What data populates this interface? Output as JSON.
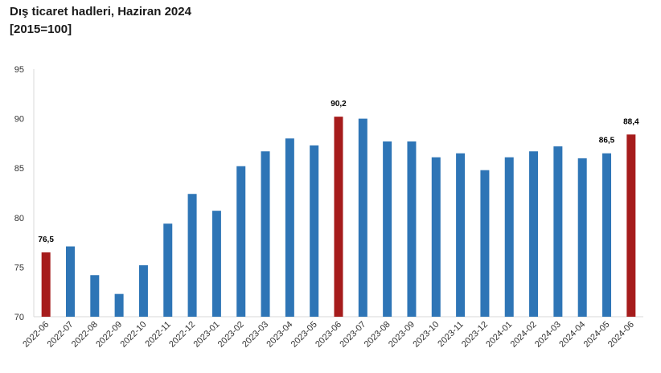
{
  "chart_data": {
    "type": "bar",
    "title": "Dış ticaret hadleri, Haziran 2024",
    "subtitle": "[2015=100]",
    "categories": [
      "2022-06",
      "2022-07",
      "2022-08",
      "2022-09",
      "2022-10",
      "2022-11",
      "2022-12",
      "2023-01",
      "2023-02",
      "2023-03",
      "2023-04",
      "2023-05",
      "2023-06",
      "2023-07",
      "2023-08",
      "2023-09",
      "2023-10",
      "2023-11",
      "2023-12",
      "2024-01",
      "2024-02",
      "2024-03",
      "2024-04",
      "2024-05",
      "2024-06"
    ],
    "values": [
      76.5,
      77.1,
      74.2,
      72.3,
      75.2,
      79.4,
      82.4,
      80.7,
      85.2,
      86.7,
      88.0,
      87.3,
      90.2,
      90.0,
      87.7,
      87.7,
      86.1,
      86.5,
      84.8,
      86.1,
      86.7,
      87.2,
      86.0,
      86.5,
      88.4
    ],
    "highlighted": [
      0,
      12,
      24
    ],
    "data_labels": [
      {
        "index": 0,
        "text": "76,5"
      },
      {
        "index": 12,
        "text": "90,2"
      },
      {
        "index": 23,
        "text": "86,5"
      },
      {
        "index": 24,
        "text": "88,4"
      }
    ],
    "ylim": [
      70,
      95
    ],
    "yticks": [
      70,
      75,
      80,
      85,
      90,
      95
    ],
    "grid": false,
    "colors": {
      "bar": "#2e75b6",
      "highlight": "#a61c1c",
      "axis": "#d9d9d9"
    }
  }
}
